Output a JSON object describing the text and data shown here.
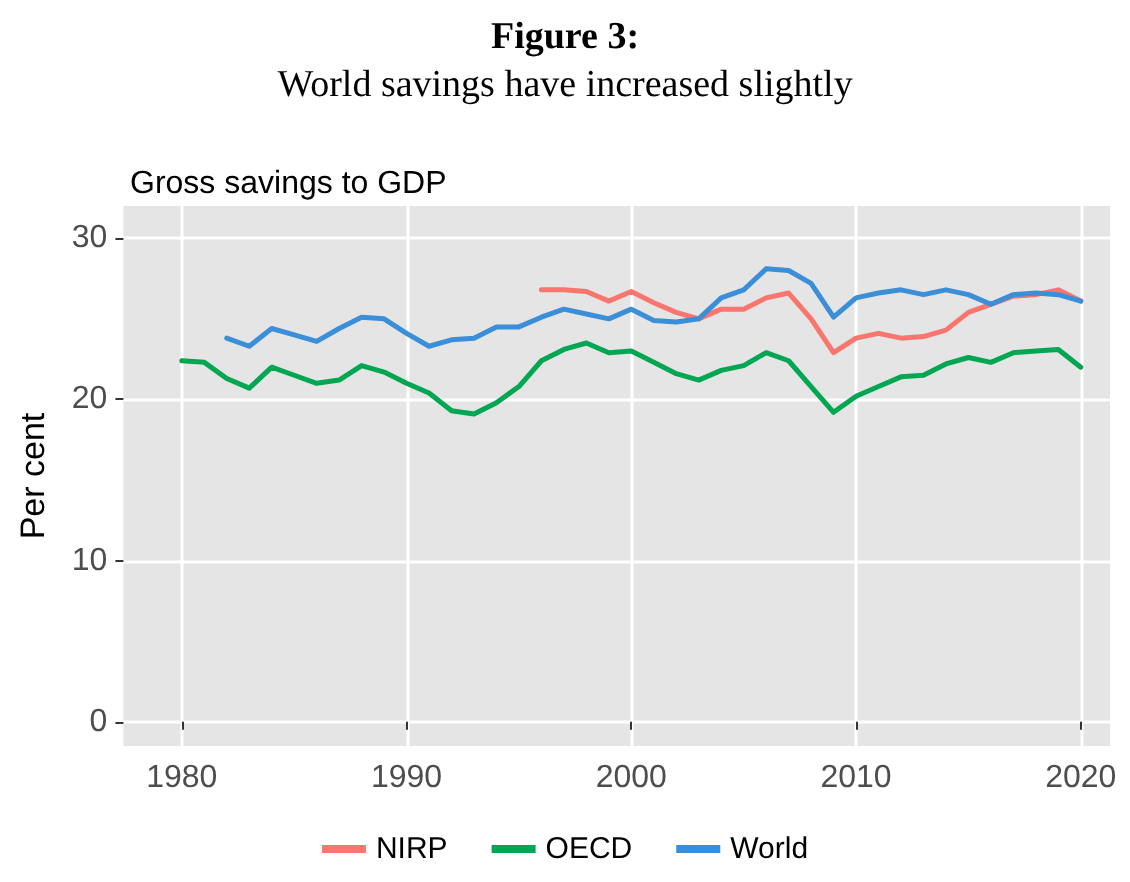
{
  "chart_data": {
    "type": "line",
    "title": "Figure 3:",
    "subtitle": "World savings have increased slightly",
    "annotations": [
      "Gross savings to GDP"
    ],
    "ylabel": "Per cent",
    "xlim": [
      1977.4,
      2021.3
    ],
    "xticks": [
      1980,
      1990,
      2000,
      2010,
      2020
    ],
    "ylim": [
      -1.5,
      32
    ],
    "yticks": [
      0,
      10,
      20,
      30
    ],
    "grid": true,
    "legend": "bottom",
    "line_style": "solid",
    "marker": "none",
    "series": [
      {
        "name": "NIRP",
        "color": "#f8766d",
        "x": [
          1996,
          1997,
          1998,
          1999,
          2000,
          2001,
          2002,
          2003,
          2004,
          2005,
          2006,
          2007,
          2008,
          2009,
          2010,
          2011,
          2012,
          2013,
          2014,
          2015,
          2016,
          2017,
          2018,
          2019,
          2020
        ],
        "values": [
          26.8,
          26.8,
          26.7,
          26.1,
          26.7,
          26.0,
          25.4,
          25.0,
          25.6,
          25.6,
          26.3,
          26.6,
          25.0,
          22.9,
          23.8,
          24.1,
          23.8,
          23.9,
          24.3,
          25.4,
          25.9,
          26.4,
          26.5,
          26.8,
          26.1
        ]
      },
      {
        "name": "OECD",
        "color": "#00a651",
        "x": [
          1980,
          1981,
          1982,
          1983,
          1984,
          1985,
          1986,
          1987,
          1988,
          1989,
          1990,
          1991,
          1992,
          1993,
          1994,
          1995,
          1996,
          1997,
          1998,
          1999,
          2000,
          2001,
          2002,
          2003,
          2004,
          2005,
          2006,
          2007,
          2008,
          2009,
          2010,
          2011,
          2012,
          2013,
          2014,
          2015,
          2016,
          2017,
          2018,
          2019,
          2020
        ],
        "values": [
          22.4,
          22.3,
          21.3,
          20.7,
          22.0,
          21.5,
          21.0,
          21.2,
          22.1,
          21.7,
          21.0,
          20.4,
          19.3,
          19.1,
          19.8,
          20.8,
          22.4,
          23.1,
          23.5,
          22.9,
          23.0,
          22.3,
          21.6,
          21.2,
          21.8,
          22.1,
          22.9,
          22.4,
          20.8,
          19.2,
          20.2,
          20.8,
          21.4,
          21.5,
          22.2,
          22.6,
          22.3,
          22.9,
          23.0,
          23.1,
          22.0
        ]
      },
      {
        "name": "World",
        "color": "#3b8ed8",
        "x": [
          1982,
          1983,
          1984,
          1985,
          1986,
          1987,
          1988,
          1989,
          1990,
          1991,
          1992,
          1993,
          1994,
          1995,
          1996,
          1997,
          1998,
          1999,
          2000,
          2001,
          2002,
          2003,
          2004,
          2005,
          2006,
          2007,
          2008,
          2009,
          2010,
          2011,
          2012,
          2013,
          2014,
          2015,
          2016,
          2017,
          2018,
          2019,
          2020
        ],
        "values": [
          23.8,
          23.3,
          24.4,
          24.0,
          23.6,
          24.4,
          25.1,
          25.0,
          24.1,
          23.3,
          23.7,
          23.8,
          24.5,
          24.5,
          25.1,
          25.6,
          25.3,
          25.0,
          25.6,
          24.9,
          24.8,
          25.0,
          26.3,
          26.8,
          28.1,
          28.0,
          27.2,
          25.1,
          26.3,
          26.6,
          26.8,
          26.5,
          26.8,
          26.5,
          25.9,
          26.5,
          26.6,
          26.5,
          26.1
        ]
      }
    ]
  }
}
